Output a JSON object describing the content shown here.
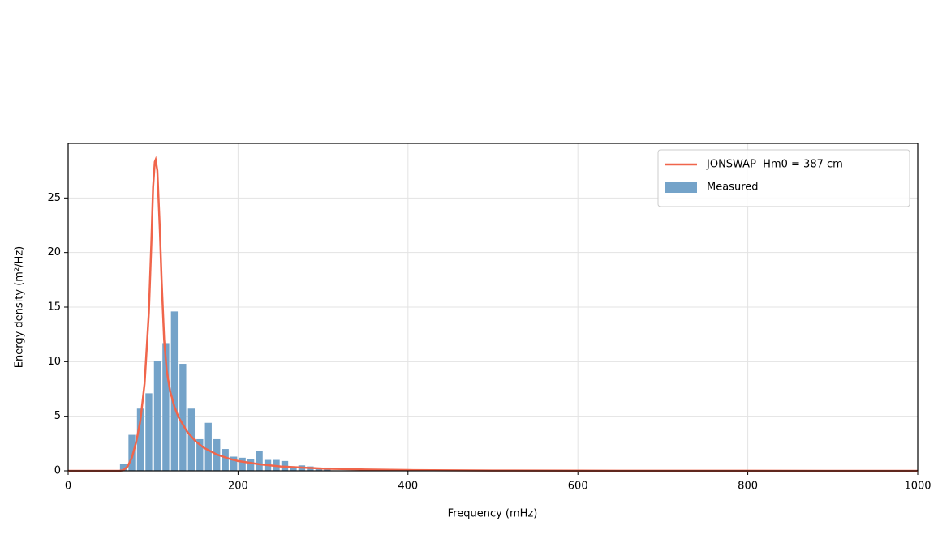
{
  "chart_data": {
    "type": "bar",
    "xlabel": "Frequency (mHz)",
    "ylabel": "Energy density (m²/Hz)",
    "xlim": [
      0,
      1000
    ],
    "xticks": [
      0,
      200,
      400,
      600,
      800,
      1000
    ],
    "ylim": [
      0,
      30
    ],
    "yticks": [
      0,
      5,
      10,
      15,
      20,
      25
    ],
    "grid": true,
    "legend": "upper right",
    "series": [
      {
        "name": "JONSWAP  Hm0 = 387 cm",
        "type": "line",
        "color": "#f0654b",
        "x": [
          0,
          60,
          65,
          70,
          75,
          80,
          85,
          90,
          95,
          98,
          100,
          102,
          103,
          105,
          108,
          110,
          113,
          116,
          120,
          125,
          130,
          140,
          150,
          160,
          175,
          190,
          200,
          225,
          250,
          300,
          350,
          400,
          500,
          600,
          800,
          1000
        ],
        "values": [
          0,
          0,
          0.05,
          0.4,
          1.2,
          2.6,
          4.6,
          8.0,
          14.5,
          21,
          26,
          28.3,
          28.5,
          27.5,
          22,
          17.5,
          12,
          9.2,
          7.3,
          5.9,
          4.9,
          3.6,
          2.7,
          2.1,
          1.5,
          1.1,
          0.9,
          0.6,
          0.4,
          0.2,
          0.12,
          0.07,
          0.03,
          0.015,
          0.005,
          0.002
        ]
      },
      {
        "name": "Measured",
        "type": "bar",
        "color": "#74a3c9",
        "x": [
          65,
          75,
          85,
          95,
          105,
          115,
          125,
          135,
          145,
          155,
          165,
          175,
          185,
          195,
          205,
          215,
          225,
          235,
          245,
          255,
          265,
          275,
          285,
          295,
          305
        ],
        "values": [
          0.6,
          3.3,
          5.7,
          7.1,
          10.1,
          11.7,
          14.6,
          9.8,
          5.7,
          2.9,
          4.4,
          2.9,
          2.0,
          1.3,
          1.2,
          1.1,
          1.8,
          1.0,
          1.0,
          0.9,
          0.3,
          0.5,
          0.4,
          0.2,
          0.3
        ]
      }
    ]
  }
}
